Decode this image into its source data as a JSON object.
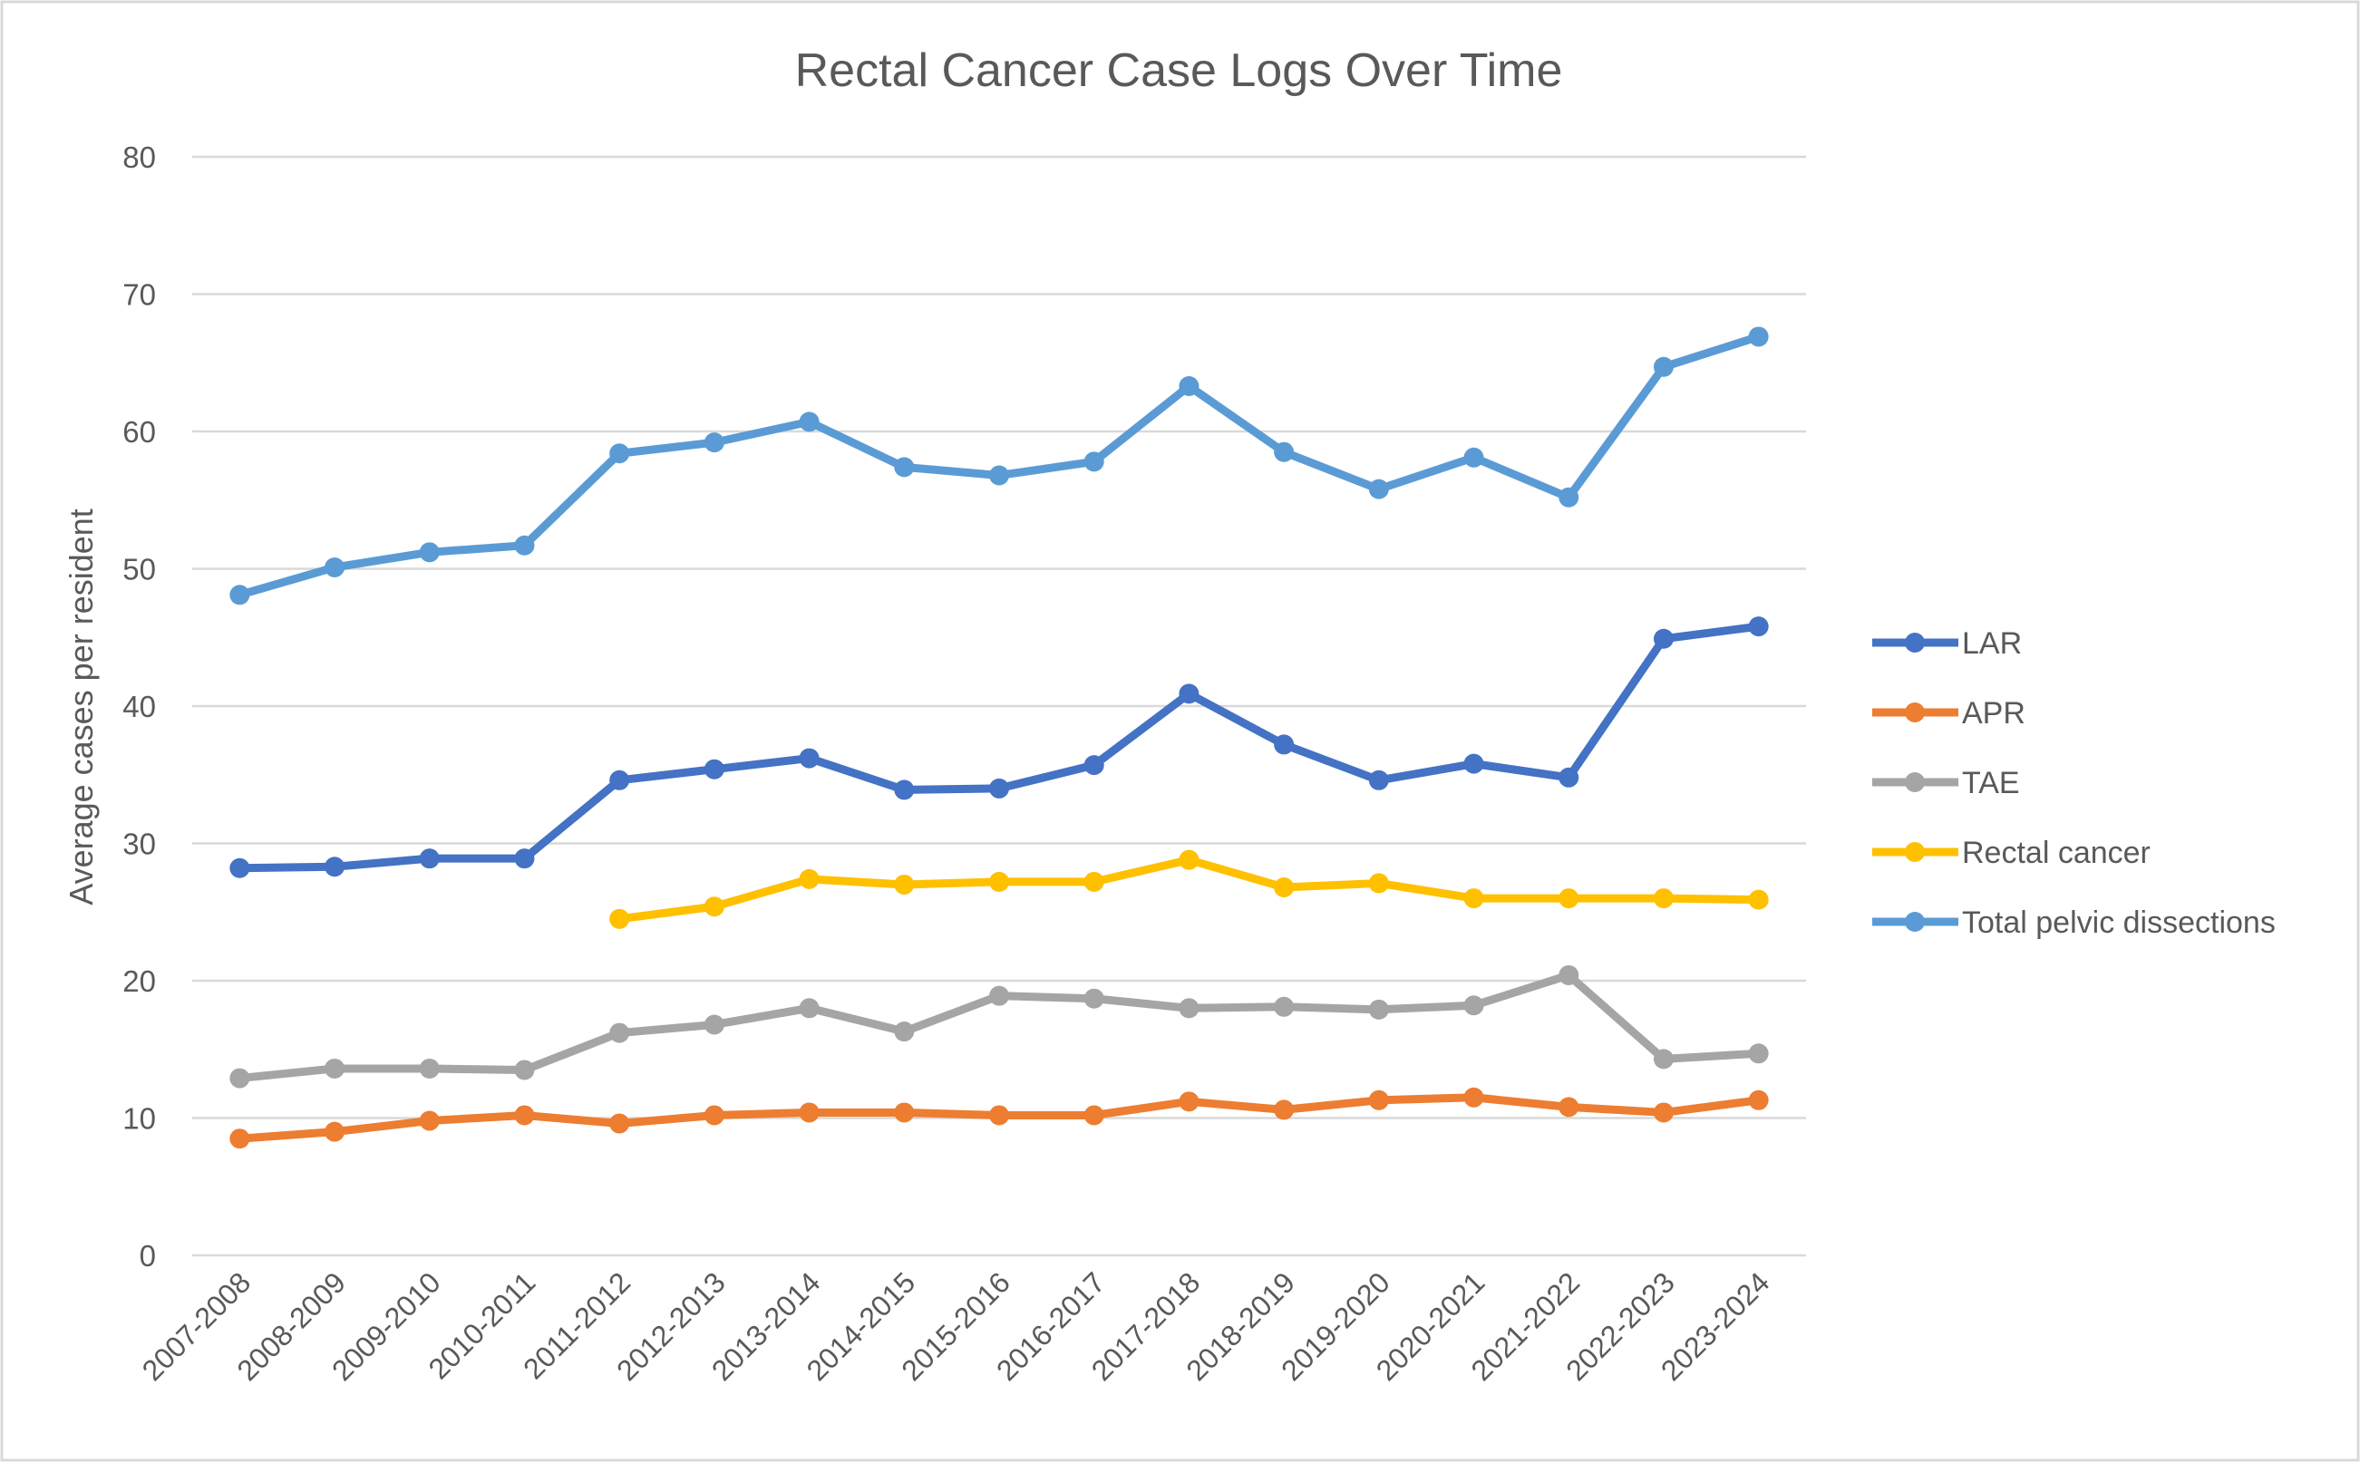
{
  "chart_data": {
    "type": "line",
    "title": "Rectal Cancer Case Logs Over Time",
    "xlabel": "",
    "ylabel": "Average cases per resident",
    "ylim": [
      0,
      80
    ],
    "yticks": [
      0,
      10,
      20,
      30,
      40,
      50,
      60,
      70,
      80
    ],
    "grid": true,
    "legend_position": "right",
    "categories": [
      "2007-2008",
      "2008-2009",
      "2009-2010",
      "2010-2011",
      "2011-2012",
      "2012-2013",
      "2013-2014",
      "2014-2015",
      "2015-2016",
      "2016-2017",
      "2017-2018",
      "2018-2019",
      "2019-2020",
      "2020-2021",
      "2021-2022",
      "2022-2023",
      "2023-2024"
    ],
    "series": [
      {
        "name": "LAR",
        "color": "#4472C4",
        "values": [
          28.2,
          28.3,
          28.9,
          28.9,
          34.6,
          35.4,
          36.2,
          33.9,
          34.0,
          35.7,
          40.9,
          37.2,
          34.6,
          35.8,
          34.8,
          44.9,
          45.8
        ]
      },
      {
        "name": "APR",
        "color": "#ED7D31",
        "values": [
          8.5,
          9.0,
          9.8,
          10.2,
          9.6,
          10.2,
          10.4,
          10.4,
          10.2,
          10.2,
          11.2,
          10.6,
          11.3,
          11.5,
          10.8,
          10.4,
          11.3
        ]
      },
      {
        "name": "TAE",
        "color": "#A5A5A5",
        "values": [
          12.9,
          13.6,
          13.6,
          13.5,
          16.2,
          16.8,
          18.0,
          16.3,
          18.9,
          18.7,
          18.0,
          18.1,
          17.9,
          18.2,
          20.4,
          14.3,
          14.7
        ]
      },
      {
        "name": "Rectal cancer",
        "color": "#FFC000",
        "values": [
          null,
          null,
          null,
          null,
          24.5,
          25.4,
          27.4,
          27.0,
          27.2,
          27.2,
          28.8,
          26.8,
          27.1,
          26.0,
          26.0,
          26.0,
          25.9
        ]
      },
      {
        "name": "Total pelvic dissections",
        "color": "#5B9BD5",
        "values": [
          48.1,
          50.1,
          51.2,
          51.7,
          58.4,
          59.2,
          60.7,
          57.4,
          56.8,
          57.8,
          63.3,
          58.5,
          55.8,
          58.1,
          55.2,
          64.7,
          66.9
        ]
      }
    ]
  }
}
